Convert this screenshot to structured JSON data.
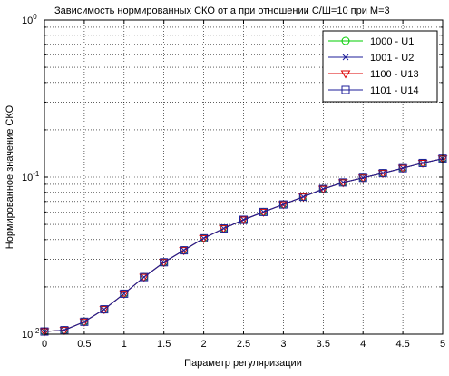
{
  "chart_data": {
    "type": "line",
    "title": "Зависимость нормированных СКО от a при отношении С/Ш=10 при M=3",
    "xlabel": "Параметр регуляризации",
    "ylabel": "Нормированное значение СКО",
    "xlim": [
      0,
      5
    ],
    "ylim": [
      0.01,
      1
    ],
    "yscale": "log",
    "grid": true,
    "legend_position": "top-right",
    "x_ticks": [
      "0",
      "0.5",
      "1",
      "1.5",
      "2",
      "2.5",
      "3",
      "3.5",
      "4",
      "4.5",
      "5"
    ],
    "y_ticks": [
      {
        "base": "10",
        "exp": "0"
      },
      {
        "base": "10",
        "exp": "-1"
      },
      {
        "base": "10",
        "exp": "-2"
      }
    ],
    "x": [
      0,
      0.25,
      0.5,
      0.75,
      1,
      1.25,
      1.5,
      1.75,
      2,
      2.25,
      2.5,
      2.75,
      3,
      3.25,
      3.5,
      3.75,
      4,
      4.25,
      4.5,
      4.75,
      5
    ],
    "series": [
      {
        "name": "1000 - U1",
        "color": "#00cc00",
        "marker": "circle",
        "values": [
          0.0104,
          0.0106,
          0.012,
          0.0144,
          0.0181,
          0.0231,
          0.0287,
          0.0342,
          0.0408,
          0.0471,
          0.0535,
          0.06,
          0.067,
          0.075,
          0.084,
          0.0925,
          0.099,
          0.106,
          0.114,
          0.123,
          0.131
        ]
      },
      {
        "name": "1001 - U2",
        "color": "#1e1e99",
        "marker": "x",
        "values": [
          0.0104,
          0.0106,
          0.012,
          0.0144,
          0.0181,
          0.0231,
          0.0287,
          0.0342,
          0.0408,
          0.0471,
          0.0535,
          0.06,
          0.067,
          0.075,
          0.084,
          0.0925,
          0.099,
          0.106,
          0.114,
          0.123,
          0.131
        ]
      },
      {
        "name": "1100 - U13",
        "color": "#dd0000",
        "marker": "triangle-down",
        "values": [
          0.0104,
          0.0106,
          0.012,
          0.0144,
          0.0181,
          0.0231,
          0.0287,
          0.0342,
          0.0408,
          0.0471,
          0.0535,
          0.06,
          0.067,
          0.075,
          0.084,
          0.0925,
          0.099,
          0.106,
          0.114,
          0.123,
          0.131
        ]
      },
      {
        "name": "1101 - U14",
        "color": "#1e1e99",
        "marker": "square",
        "values": [
          0.0104,
          0.0106,
          0.012,
          0.0144,
          0.0181,
          0.0231,
          0.0287,
          0.0342,
          0.0408,
          0.0471,
          0.0535,
          0.06,
          0.067,
          0.075,
          0.084,
          0.0925,
          0.099,
          0.106,
          0.114,
          0.123,
          0.131
        ]
      }
    ]
  }
}
